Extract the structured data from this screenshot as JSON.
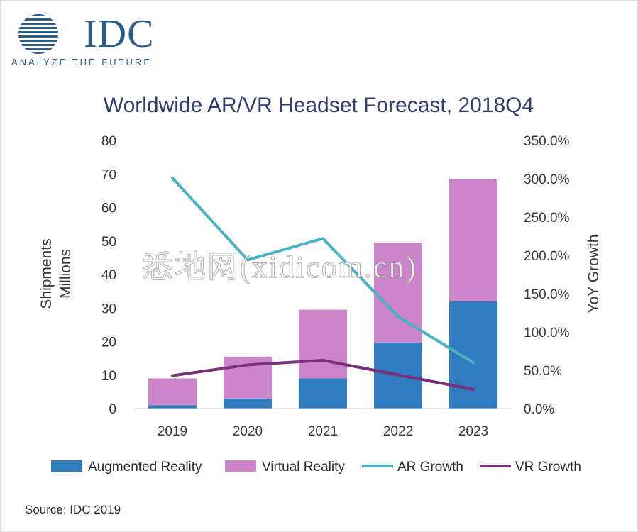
{
  "logo": {
    "word": "IDC",
    "tagline": "ANALYZE THE FUTURE"
  },
  "watermark": "悉地网(xidicom.cn)",
  "source": "Source: IDC 2019",
  "colors": {
    "ar": "#2e7bbf",
    "vr": "#cc85c8",
    "ar_growth": "#4ab3c3",
    "vr_growth": "#7a2f7a",
    "title": "#2f3d74",
    "axis_text": "#3a3a3a",
    "logo": "#2a5c88"
  },
  "chart_data": {
    "type": "bar",
    "stacked": true,
    "title": "Worldwide AR/VR Headset Forecast, 2018Q4",
    "ylabel": [
      "Shipments",
      "Millions"
    ],
    "y2label": "YoY Growth",
    "xlabel": "",
    "categories": [
      "2019",
      "2020",
      "2021",
      "2022",
      "2023"
    ],
    "ylim": [
      0,
      80
    ],
    "yticks": [
      "0",
      "10",
      "20",
      "30",
      "40",
      "50",
      "60",
      "70",
      "80"
    ],
    "y2lim": [
      0,
      350
    ],
    "y2ticks": [
      "0.0%",
      "50.0%",
      "100.0%",
      "150.0%",
      "200.0%",
      "250.0%",
      "300.0%",
      "350.0%"
    ],
    "series": [
      {
        "name": "Augmented Reality",
        "kind": "bar",
        "axis": "left",
        "values": [
          1,
          3,
          9,
          19.7,
          32
        ]
      },
      {
        "name": "Virtual Reality",
        "kind": "bar",
        "axis": "left",
        "values": [
          8,
          12.5,
          20.5,
          29.8,
          36.5
        ]
      },
      {
        "name": "AR Growth",
        "kind": "line",
        "axis": "right",
        "values": [
          301,
          194,
          222,
          120,
          60
        ]
      },
      {
        "name": "VR Growth",
        "kind": "line",
        "axis": "right",
        "values": [
          43,
          57,
          63,
          44,
          25
        ]
      }
    ],
    "legend": "bottom",
    "grid": false
  }
}
